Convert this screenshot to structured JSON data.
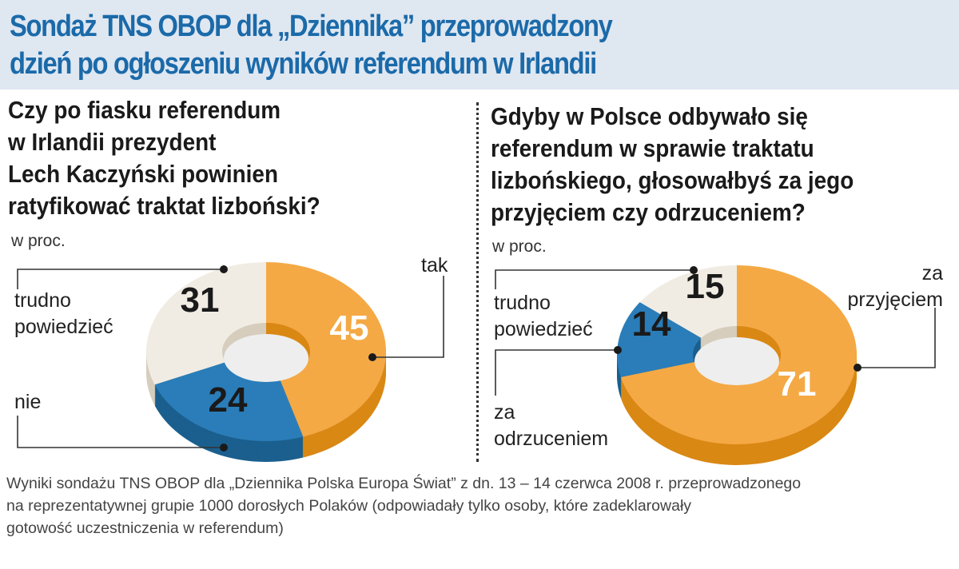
{
  "title": [
    "Sondaż TNS OBOP dla „Dziennika” przeprowadzony",
    "dzień po ogłoszeniu wyników referendum w Irlandii"
  ],
  "footer": [
    "Wyniki sondażu TNS OBOP dla „Dziennika Polska Europa Świat” z dn. 13 – 14 czerwca 2008 r. przeprowadzonego",
    "na reprezentatywnej grupie 1000 dorosłych Polaków (odpowiadały tylko osoby, które zadeklarowały",
    "gotowość uczestniczenia w referendum)"
  ],
  "colors": {
    "orange": "#f4a945",
    "orange_dark": "#d98814",
    "blue": "#2a7db8",
    "blue_dark": "#1a5f8e",
    "beige": "#f1ece3",
    "beige_dark": "#d6cdbd",
    "title": "#1b6aa9",
    "header_bg": "#dfe7f1"
  },
  "chart_data": [
    {
      "type": "pie",
      "style": "3d donut",
      "title": [
        "Czy po fiasku referendum",
        "w Irlandii prezydent",
        "Lech Kaczyński powinien",
        "ratyfikować traktat lizboński?"
      ],
      "unit": "w proc.",
      "slices": [
        {
          "label": "tak",
          "value": 45,
          "color": "orange"
        },
        {
          "label": "nie",
          "value": 24,
          "color": "blue"
        },
        {
          "label": "trudno powiedzieć",
          "value": 31,
          "color": "beige"
        }
      ]
    },
    {
      "type": "pie",
      "style": "3d donut",
      "title": [
        "Gdyby w Polsce odbywało się",
        "referendum w sprawie traktatu",
        "lizbońskiego, głosowałbyś za jego",
        "przyjęciem czy odrzuceniem?"
      ],
      "unit": "w proc.",
      "slices": [
        {
          "label": "za przyjęciem",
          "value": 71,
          "color": "orange"
        },
        {
          "label": "za odrzuceniem",
          "value": 14,
          "color": "blue"
        },
        {
          "label": "trudno powiedzieć",
          "value": 15,
          "color": "beige"
        }
      ]
    }
  ]
}
